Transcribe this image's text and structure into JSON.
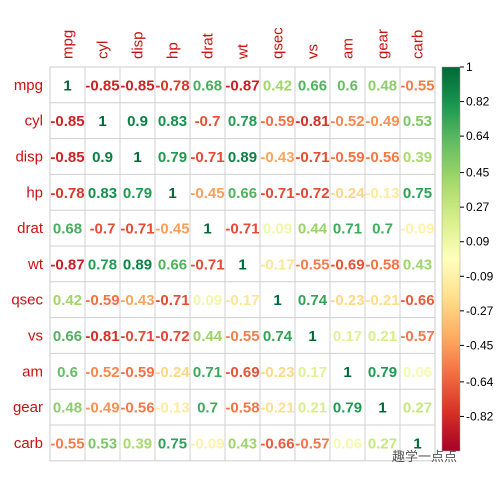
{
  "chart_data": {
    "type": "heatmap",
    "variables": [
      "mpg",
      "cyl",
      "disp",
      "hp",
      "drat",
      "wt",
      "qsec",
      "vs",
      "am",
      "gear",
      "carb"
    ],
    "matrix": [
      [
        1,
        -0.85,
        -0.85,
        -0.78,
        0.68,
        -0.87,
        0.42,
        0.66,
        0.6,
        0.48,
        -0.55
      ],
      [
        -0.85,
        1,
        0.9,
        0.83,
        -0.7,
        0.78,
        -0.59,
        -0.81,
        -0.52,
        -0.49,
        0.53
      ],
      [
        -0.85,
        0.9,
        1,
        0.79,
        -0.71,
        0.89,
        -0.43,
        -0.71,
        -0.59,
        -0.56,
        0.39
      ],
      [
        -0.78,
        0.83,
        0.79,
        1,
        -0.45,
        0.66,
        -0.71,
        -0.72,
        -0.24,
        -0.13,
        0.75
      ],
      [
        0.68,
        -0.7,
        -0.71,
        -0.45,
        1,
        -0.71,
        0.09,
        0.44,
        0.71,
        0.7,
        -0.09
      ],
      [
        -0.87,
        0.78,
        0.89,
        0.66,
        -0.71,
        1,
        -0.17,
        -0.55,
        -0.69,
        -0.58,
        0.43
      ],
      [
        0.42,
        -0.59,
        -0.43,
        -0.71,
        0.09,
        -0.17,
        1,
        0.74,
        -0.23,
        -0.21,
        -0.66
      ],
      [
        0.66,
        -0.81,
        -0.71,
        -0.72,
        0.44,
        -0.55,
        0.74,
        1,
        0.17,
        0.21,
        -0.57
      ],
      [
        0.6,
        -0.52,
        -0.59,
        -0.24,
        0.71,
        -0.69,
        -0.23,
        0.17,
        1,
        0.79,
        0.06
      ],
      [
        0.48,
        -0.49,
        -0.56,
        -0.13,
        0.7,
        -0.58,
        -0.21,
        0.21,
        0.79,
        1,
        0.27
      ],
      [
        -0.55,
        0.53,
        0.39,
        0.75,
        -0.09,
        0.43,
        -0.66,
        -0.57,
        0.06,
        0.27,
        1
      ]
    ],
    "colorbar": {
      "ticks": [
        "1",
        "0.82",
        "0.64",
        "0.45",
        "0.27",
        "0.09",
        "-0.09",
        "-0.27",
        "-0.45",
        "-0.64",
        "-0.82"
      ],
      "range": [
        -1,
        1
      ],
      "colors": [
        "#a50026",
        "#d73027",
        "#f46d43",
        "#fdae61",
        "#fee08b",
        "#ffffbf",
        "#d9ef8b",
        "#a6d96a",
        "#66bd63",
        "#1a9850",
        "#006837"
      ]
    },
    "label_color": "#cc1111",
    "grid": true
  },
  "watermark": "趣学一点点"
}
